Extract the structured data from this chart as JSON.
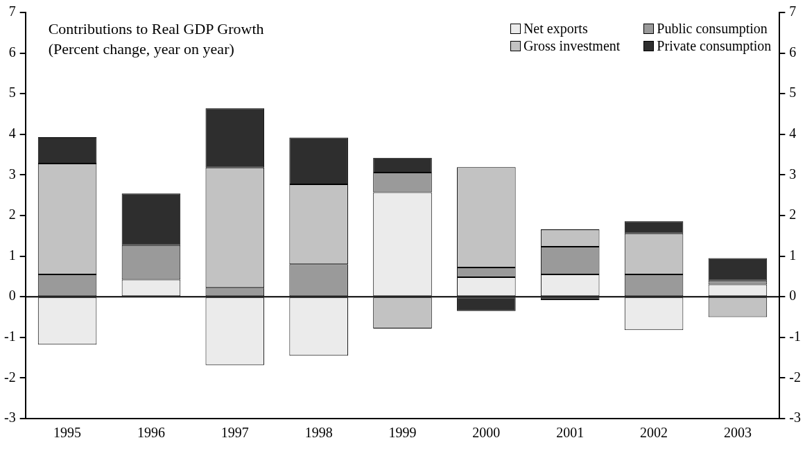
{
  "chart_data": {
    "type": "bar",
    "title": "Contributions to Real GDP Growth",
    "subtitle": "(Percent change, year on year)",
    "categories": [
      "1995",
      "1996",
      "1997",
      "1998",
      "1999",
      "2000",
      "2001",
      "2002",
      "2003"
    ],
    "stacked": true,
    "ref_lines": [
      {
        "axis": "y",
        "value": 0,
        "color": "#000000"
      }
    ],
    "legend": "top right",
    "grid": false,
    "ylim": [
      -3,
      7
    ],
    "yticks": [
      -3,
      -2,
      -1,
      0,
      1,
      2,
      3,
      4,
      5,
      6,
      7
    ],
    "y2lim": [
      -3,
      7
    ],
    "y2ticks": [
      -3,
      -2,
      -1,
      0,
      1,
      2,
      3,
      4,
      5,
      6,
      7
    ],
    "series": [
      {
        "name": "Net exports",
        "color": "#ebebeb",
        "values": [
          -1.18,
          0.42,
          -1.68,
          -1.45,
          2.57,
          0.48,
          0.55,
          -0.82,
          0.3
        ]
      },
      {
        "name": "Public consumption",
        "color": "#9a9a9a",
        "values": [
          0.55,
          0.85,
          0.22,
          0.8,
          0.49,
          0.24,
          0.68,
          0.55,
          0.1
        ]
      },
      {
        "name": "Gross investment",
        "color": "#c2c2c2",
        "values": [
          2.73,
          null,
          2.96,
          1.97,
          -0.78,
          2.47,
          0.43,
          1.01,
          -0.5
        ]
      },
      {
        "name": "Private consumption",
        "color": "#2e2e2e",
        "values": [
          0.65,
          1.27,
          1.46,
          1.15,
          0.36,
          -0.35,
          -0.08,
          0.3,
          0.55
        ]
      }
    ]
  }
}
